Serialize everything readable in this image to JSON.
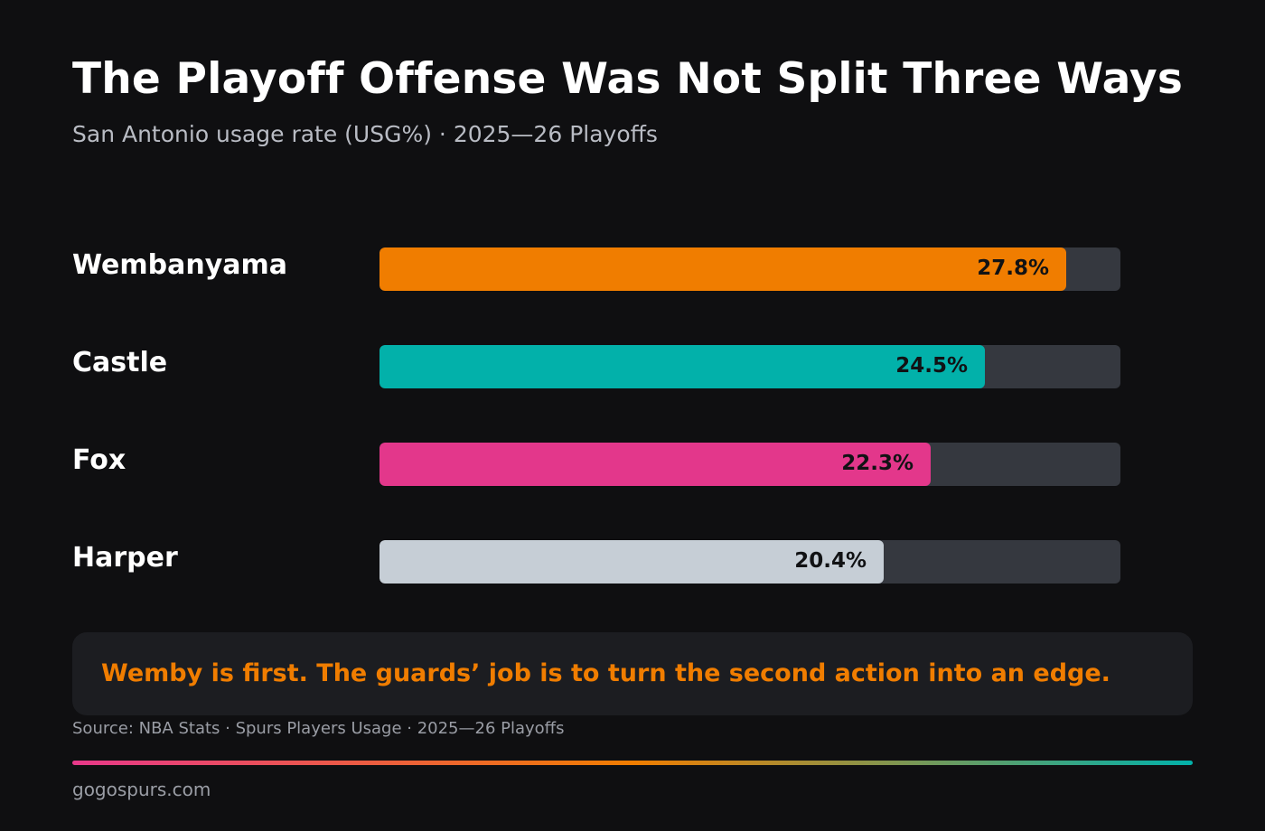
{
  "header": {
    "title": "The Playoff Offense Was Not Split Three Ways",
    "subtitle": "San Antonio usage rate (USG%) · 2025—26 Playoffs"
  },
  "chart_data": {
    "type": "bar",
    "orientation": "horizontal",
    "title": "The Playoff Offense Was Not Split Three Ways",
    "subtitle": "San Antonio usage rate (USG%) · 2025—26 Playoffs",
    "xlim": [
      0,
      30
    ],
    "grid": false,
    "categories": [
      "Wembanyama",
      "Castle",
      "Fox",
      "Harper"
    ],
    "values": [
      27.8,
      24.5,
      22.3,
      20.4
    ],
    "value_labels": [
      "27.8%",
      "24.5%",
      "22.3%",
      "20.4%"
    ],
    "colors": [
      "#f07d00",
      "#02b1aa",
      "#e3378b",
      "#c6ced6"
    ]
  },
  "callout": {
    "text": "Wemby is first. The guards’ job is to turn the second action into an edge."
  },
  "footer": {
    "source": "Source: NBA Stats · Spurs Players Usage · 2025—26 Playoffs",
    "site": "gogospurs.com"
  }
}
